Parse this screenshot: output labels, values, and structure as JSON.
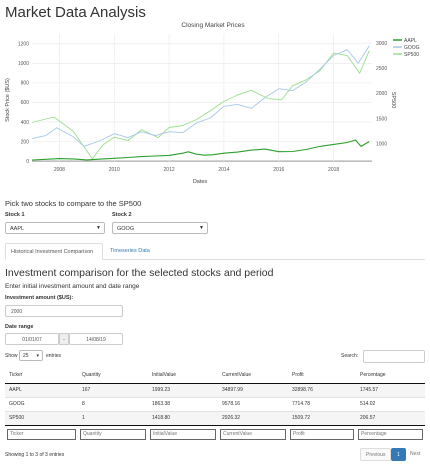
{
  "app": {
    "title": "Market Data Analysis"
  },
  "chart": {
    "title": "Closing Market Prices",
    "xlabel": "Dates",
    "ylabel_left": "Stock Price ($US)",
    "ylabel_right": "SP500"
  },
  "chart_data": {
    "type": "line",
    "title": "Closing Market Prices",
    "xlabel": "Dates",
    "ylabel": "Stock Price ($US)",
    "y2label": "SP500",
    "x_ticks": [
      "2008",
      "2010",
      "2012",
      "2014",
      "2016",
      "2018"
    ],
    "y_ticks": [
      "0",
      "200",
      "400",
      "600",
      "800",
      "1000",
      "1200"
    ],
    "y2_ticks": [
      "1000",
      "1500",
      "2000",
      "2500",
      "3000"
    ],
    "xlim": [
      2007.0,
      2019.4
    ],
    "ylim": [
      -20,
      1300
    ],
    "y2lim": [
      615,
      3180
    ],
    "legend_placement": "top-right",
    "grid": true,
    "series": [
      {
        "name": "AAPL",
        "axis": "left",
        "color": "#2ca02c",
        "x": [
          2007.0,
          2007.5,
          2008.0,
          2008.5,
          2009.0,
          2009.5,
          2010.0,
          2010.5,
          2011.0,
          2011.5,
          2012.0,
          2012.5,
          2012.7,
          2013.0,
          2013.3,
          2013.6,
          2014.0,
          2014.5,
          2015.0,
          2015.5,
          2016.0,
          2016.5,
          2017.0,
          2017.5,
          2018.0,
          2018.5,
          2018.8,
          2019.0,
          2019.3
        ],
        "values": [
          11,
          18,
          25,
          22,
          12,
          20,
          28,
          36,
          45,
          52,
          58,
          80,
          95,
          70,
          60,
          65,
          80,
          92,
          112,
          122,
          96,
          98,
          118,
          150,
          170,
          190,
          215,
          150,
          200
        ]
      },
      {
        "name": "GOOG",
        "axis": "left",
        "color": "#a6c8e8",
        "x": [
          2007.0,
          2007.5,
          2007.9,
          2008.5,
          2008.9,
          2009.5,
          2010.0,
          2010.5,
          2011.0,
          2011.5,
          2012.0,
          2012.5,
          2013.0,
          2013.5,
          2014.0,
          2014.5,
          2015.0,
          2015.5,
          2016.0,
          2016.5,
          2017.0,
          2017.5,
          2018.0,
          2018.5,
          2018.9,
          2019.3
        ],
        "values": [
          230,
          260,
          340,
          250,
          150,
          210,
          280,
          240,
          300,
          260,
          300,
          290,
          390,
          440,
          560,
          580,
          540,
          650,
          740,
          720,
          810,
          940,
          1080,
          1140,
          1000,
          1180
        ]
      },
      {
        "name": "SP500",
        "axis": "right",
        "color": "#98df8a",
        "x": [
          2007.0,
          2007.8,
          2008.5,
          2009.2,
          2009.6,
          2010.0,
          2010.5,
          2011.0,
          2011.6,
          2012.0,
          2012.5,
          2013.0,
          2013.5,
          2014.0,
          2014.5,
          2015.0,
          2015.6,
          2016.1,
          2016.5,
          2017.0,
          2017.5,
          2018.0,
          2018.5,
          2018.95,
          2019.3
        ],
        "values": [
          1420,
          1530,
          1250,
          700,
          980,
          1130,
          1060,
          1280,
          1120,
          1320,
          1360,
          1480,
          1650,
          1840,
          1970,
          2060,
          1900,
          1870,
          2150,
          2270,
          2450,
          2800,
          2750,
          2400,
          2850
        ]
      }
    ]
  },
  "compare": {
    "prompt": "Pick two stocks to compare to the SP500",
    "stock1_label": "Stock 1",
    "stock1_value": "AAPL",
    "stock2_label": "Stock 2",
    "stock2_value": "GOOG"
  },
  "tabs": [
    {
      "label": "Historical Investment Comparison"
    },
    {
      "label": "Timeseries Data"
    }
  ],
  "investment": {
    "heading": "Investment comparison for the selected stocks and period",
    "subheading": "Enter initial investment amount and date range",
    "amount_label": "Investment amount ($US):",
    "amount_value": "2000",
    "date_label": "Date range",
    "date_start": "01/01/07",
    "date_sep": "-",
    "date_end": "14/08/19"
  },
  "table": {
    "show_label": "Show",
    "entries_value": "25",
    "entries_label": "entries",
    "search_label": "Search:",
    "columns": [
      "Ticker",
      "Quantity",
      "InitialValue",
      "CurrentValue",
      "Profit",
      "Percentage"
    ],
    "rows": [
      [
        "AAPL",
        "167",
        "1999.23",
        "34897.99",
        "32898.76",
        "1745.57"
      ],
      [
        "GOOG",
        "8",
        "1863.38",
        "9578.16",
        "7714.78",
        "514.02"
      ],
      [
        "SP500",
        "1",
        "1418.80",
        "2926.32",
        "1509.72",
        "206.57"
      ]
    ],
    "filters": [
      "Ticker",
      "Quantity",
      "InitialValue",
      "CurrentValue",
      "Profit",
      "Percentage"
    ],
    "info": "Showing 1 to 3 of 3 entries",
    "prev_label": "Previous",
    "page_label": "1",
    "next_label": "Next"
  }
}
